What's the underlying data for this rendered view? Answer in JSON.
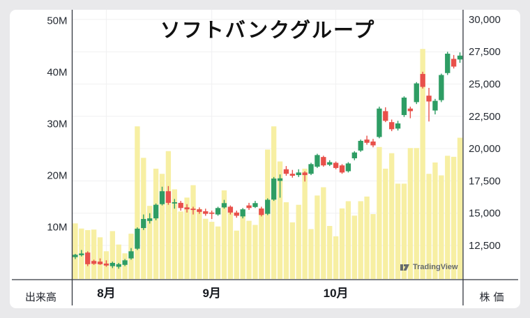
{
  "title": "ソフトバンクグループ",
  "watermark": {
    "text": "TradingView",
    "logo": "tradingview-logo"
  },
  "colors": {
    "up": "#2e9d64",
    "down": "#e8504a",
    "volume_bar": "#f7efa3",
    "grid": "#f0f0f1",
    "axis_line": "#32363e",
    "tick_text": "#262b33",
    "month_text": "#15181e",
    "title_text": "#111111",
    "watermark_text": "#565c66",
    "card_bg": "#ffffff",
    "page_bg": "#e9e9eb"
  },
  "chart_data": {
    "type": "candlestick_with_volume",
    "title": "ソフトバンクグループ",
    "ylabel_left": "出来高",
    "ylabel_right": "株価",
    "legend_position": "none",
    "grid": "on",
    "price_axis_range": [
      9855,
      30750
    ],
    "volume_axis_range_M": [
      0,
      52
    ],
    "price_ticks": [
      {
        "label": "30,000",
        "value": 30000
      },
      {
        "label": "27,500",
        "value": 27500
      },
      {
        "label": "25,000",
        "value": 25000
      },
      {
        "label": "22,500",
        "value": 22500
      },
      {
        "label": "20,000",
        "value": 20000
      },
      {
        "label": "17,500",
        "value": 17500
      },
      {
        "label": "15,000",
        "value": 15000
      },
      {
        "label": "12,500",
        "value": 12500
      }
    ],
    "volume_ticks": [
      {
        "label": "50M",
        "value": 50
      },
      {
        "label": "40M",
        "value": 40
      },
      {
        "label": "30M",
        "value": 30
      },
      {
        "label": "20M",
        "value": 20
      },
      {
        "label": "10M",
        "value": 10
      }
    ],
    "month_ticks": [
      {
        "label": "8月",
        "day_index": 5
      },
      {
        "label": "9月",
        "day_index": 22
      },
      {
        "label": "10月",
        "day_index": 42
      }
    ],
    "extra_vertical_gridline_day_index": 56,
    "columns": [
      "open",
      "high",
      "low",
      "close",
      "volume_M"
    ],
    "days": [
      [
        11600,
        11850,
        11450,
        11780,
        10.7
      ],
      [
        11750,
        12150,
        11650,
        11880,
        9.7
      ],
      [
        11950,
        12050,
        10900,
        11050,
        9.4
      ],
      [
        11300,
        11400,
        11000,
        11080,
        9.5
      ],
      [
        11250,
        11500,
        11000,
        11050,
        8.0
      ],
      [
        11100,
        11350,
        10850,
        10950,
        5.3
      ],
      [
        10900,
        11250,
        10750,
        11150,
        9.2
      ],
      [
        10850,
        11150,
        10700,
        11050,
        6.6
      ],
      [
        11000,
        11450,
        10900,
        11350,
        4.9
      ],
      [
        11500,
        12300,
        11400,
        12050,
        8.7
      ],
      [
        12250,
        13900,
        12150,
        13800,
        29.5
      ],
      [
        13850,
        14900,
        13700,
        14550,
        23.4
      ],
      [
        14400,
        15000,
        14200,
        14600,
        14.1
      ],
      [
        14600,
        15750,
        14450,
        15650,
        21.3
      ],
      [
        15700,
        17050,
        15600,
        16700,
        20.3
      ],
      [
        16700,
        17100,
        15650,
        15800,
        24.7
      ],
      [
        15750,
        16100,
        15350,
        15850,
        17.3
      ],
      [
        15800,
        15950,
        15200,
        15400,
        13.0
      ],
      [
        15450,
        15700,
        15050,
        15300,
        15.7
      ],
      [
        15350,
        15500,
        14900,
        15250,
        18.1
      ],
      [
        15300,
        15450,
        14950,
        15100,
        13.5
      ],
      [
        15150,
        15350,
        14800,
        14950,
        11.6
      ],
      [
        15050,
        15200,
        14550,
        14950,
        11.0
      ],
      [
        14900,
        15500,
        14800,
        15400,
        10.1
      ],
      [
        15450,
        16030,
        15350,
        15780,
        17.1
      ],
      [
        15500,
        15600,
        14900,
        15050,
        12.9
      ],
      [
        15050,
        15200,
        14650,
        14800,
        9.3
      ],
      [
        14750,
        15400,
        14600,
        15300,
        12.4
      ],
      [
        15600,
        15800,
        15250,
        15400,
        11.2
      ],
      [
        15480,
        15950,
        15400,
        15780,
        10.4
      ],
      [
        15360,
        15500,
        14750,
        14860,
        13.6
      ],
      [
        14950,
        16150,
        14850,
        16040,
        25.0
      ],
      [
        16050,
        17800,
        15950,
        17680,
        29.5
      ],
      [
        17500,
        18000,
        16200,
        17700,
        22.7
      ],
      [
        18400,
        18650,
        17900,
        18050,
        14.8
      ],
      [
        18050,
        18350,
        17750,
        17900,
        10.9
      ],
      [
        17950,
        18400,
        17800,
        18150,
        14.3
      ],
      [
        18150,
        18250,
        17450,
        17950,
        21.3
      ],
      [
        18050,
        18900,
        17950,
        18800,
        9.6
      ],
      [
        18600,
        19600,
        18500,
        19500,
        16.1
      ],
      [
        19350,
        19450,
        18600,
        18700,
        17.7
      ],
      [
        18750,
        19100,
        18650,
        18950,
        10.2
      ],
      [
        18900,
        19000,
        18400,
        18500,
        8.2
      ],
      [
        18700,
        18800,
        18050,
        18150,
        13.6
      ],
      [
        18250,
        18950,
        18150,
        18850,
        15.0
      ],
      [
        19250,
        19800,
        19100,
        19700,
        12.2
      ],
      [
        19850,
        20700,
        19750,
        20600,
        15.0
      ],
      [
        20700,
        21000,
        20300,
        20450,
        15.9
      ],
      [
        20550,
        20750,
        20100,
        20250,
        12.5
      ],
      [
        20900,
        23250,
        20800,
        23100,
        25.5
      ],
      [
        22900,
        23200,
        22050,
        22150,
        21.3
      ],
      [
        22050,
        22250,
        21350,
        21500,
        24.3
      ],
      [
        21550,
        22150,
        21400,
        21950,
        18.4
      ],
      [
        22600,
        24050,
        22450,
        23950,
        18.4
      ],
      [
        23100,
        23250,
        22350,
        22900,
        25.3
      ],
      [
        23600,
        25150,
        23450,
        25050,
        25.3
      ],
      [
        25780,
        25950,
        24650,
        24780,
        44.5
      ],
      [
        24100,
        24700,
        22100,
        23650,
        20.3
      ],
      [
        22950,
        23850,
        22650,
        23700,
        22.5
      ],
      [
        23750,
        25800,
        23600,
        25700,
        20.0
      ],
      [
        25850,
        27500,
        25700,
        27350,
        23.8
      ],
      [
        26950,
        27250,
        26200,
        26350,
        23.6
      ],
      [
        26900,
        27450,
        26650,
        27200,
        27.3
      ]
    ]
  }
}
